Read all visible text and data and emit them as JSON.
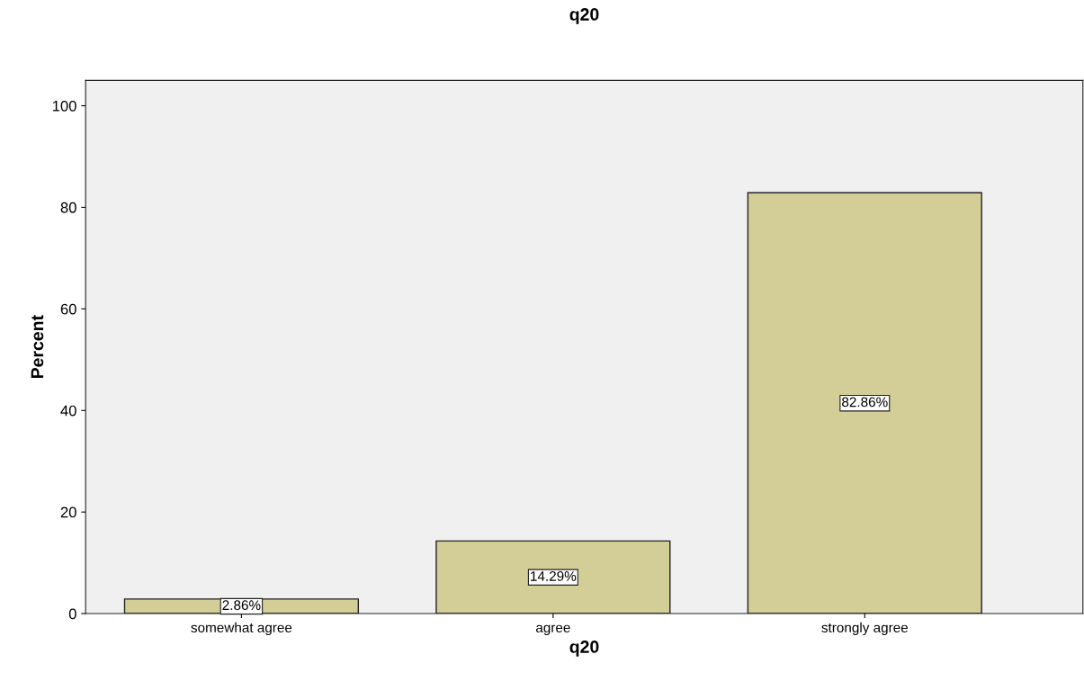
{
  "chart_data": {
    "type": "bar",
    "title": "q20",
    "xlabel": "q20",
    "ylabel": "Percent",
    "categories": [
      "somewhat agree",
      "agree",
      "strongly agree"
    ],
    "values": [
      2.86,
      14.29,
      82.86
    ],
    "value_labels": [
      "2.86%",
      "14.29%",
      "82.86%"
    ],
    "color": "#d3ce97",
    "ylim": [
      0,
      105
    ],
    "yticks": [
      0,
      20,
      40,
      60,
      80,
      100
    ],
    "grid": false
  }
}
